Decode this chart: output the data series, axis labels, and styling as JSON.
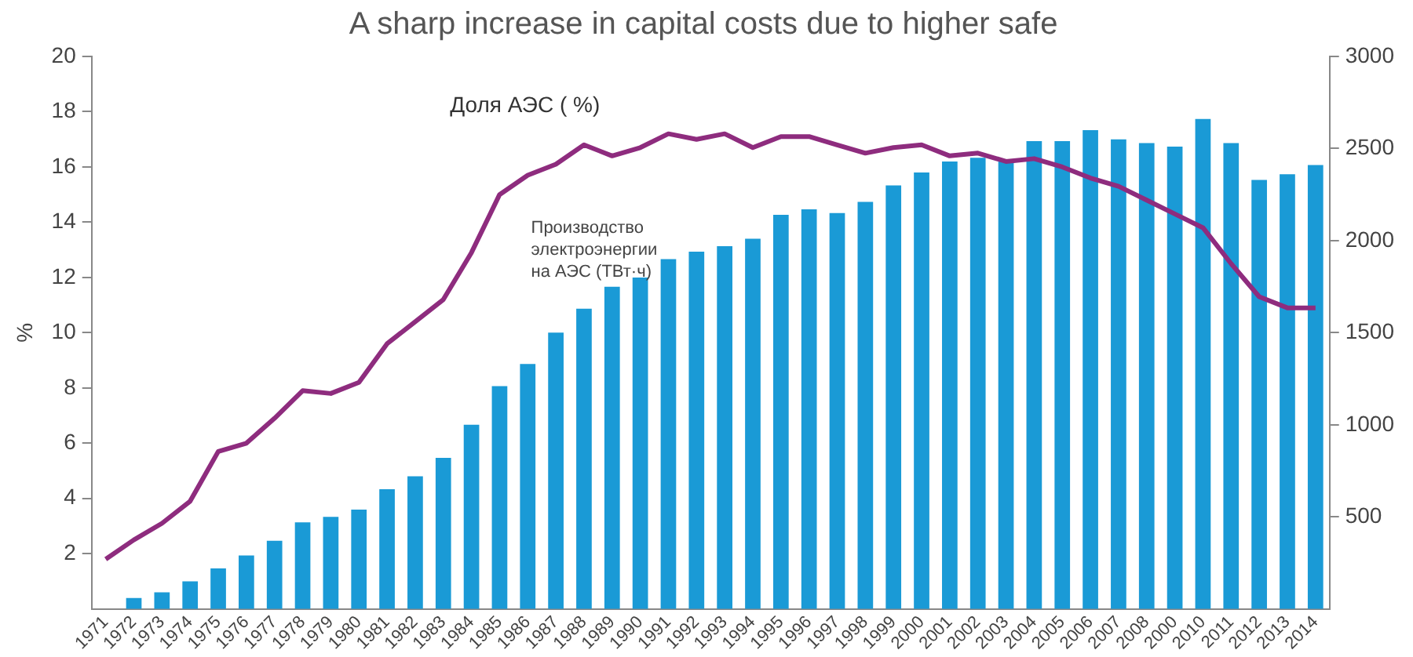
{
  "chart_data": {
    "type": "bar",
    "title": "A sharp increase in capital costs due to higher safe",
    "ylabel": "%",
    "categories": [
      "1971",
      "1972",
      "1973",
      "1974",
      "1975",
      "1976",
      "1977",
      "1978",
      "1979",
      "1980",
      "1981",
      "1982",
      "1983",
      "1984",
      "1985",
      "1986",
      "1987",
      "1988",
      "1989",
      "1990",
      "1991",
      "1992",
      "1993",
      "1994",
      "1995",
      "1996",
      "1997",
      "1998",
      "1999",
      "2000",
      "2001",
      "2002",
      "2003",
      "2004",
      "2005",
      "2006",
      "2007",
      "2008",
      "2000",
      "2010",
      "2011",
      "2012",
      "2013",
      "2014"
    ],
    "series": [
      {
        "name": "Производство электроэнергии на АЭС (ТВт·ч)",
        "axis": "y2",
        "color": "#1a9ad6",
        "values": [
          null,
          60,
          90,
          150,
          220,
          290,
          370,
          470,
          500,
          540,
          650,
          720,
          820,
          1000,
          1210,
          1330,
          1500,
          1630,
          1750,
          1800,
          1900,
          1940,
          1970,
          2010,
          2140,
          2170,
          2150,
          2210,
          2300,
          2370,
          2430,
          2450,
          2440,
          2540,
          2540,
          2600,
          2550,
          2530,
          2510,
          2660,
          2530,
          2330,
          2360,
          2410
        ]
      },
      {
        "name": "Доля АЭС ( %)",
        "type": "line",
        "axis": "y",
        "color": "#8e2c7e",
        "line_style": "solid",
        "marker": "none",
        "values": [
          1.8,
          2.5,
          3.1,
          3.9,
          5.7,
          6.0,
          6.9,
          7.9,
          7.8,
          8.2,
          9.6,
          10.4,
          11.2,
          12.9,
          15.0,
          15.7,
          16.1,
          16.8,
          16.4,
          16.7,
          17.2,
          17.0,
          17.2,
          16.7,
          17.1,
          17.1,
          16.8,
          16.5,
          16.7,
          16.8,
          16.4,
          16.5,
          16.2,
          16.3,
          16.0,
          15.6,
          15.3,
          14.8,
          14.3,
          13.8,
          12.5,
          11.3,
          10.9,
          10.9
        ]
      }
    ],
    "ylim": [
      0,
      20
    ],
    "yticks": [
      2,
      4,
      6,
      8,
      10,
      12,
      14,
      16,
      18,
      20
    ],
    "y2lim": [
      0,
      3000
    ],
    "y2ticks": [
      500,
      1000,
      1500,
      2000,
      2500,
      3000
    ],
    "grid": false,
    "legend": false
  }
}
